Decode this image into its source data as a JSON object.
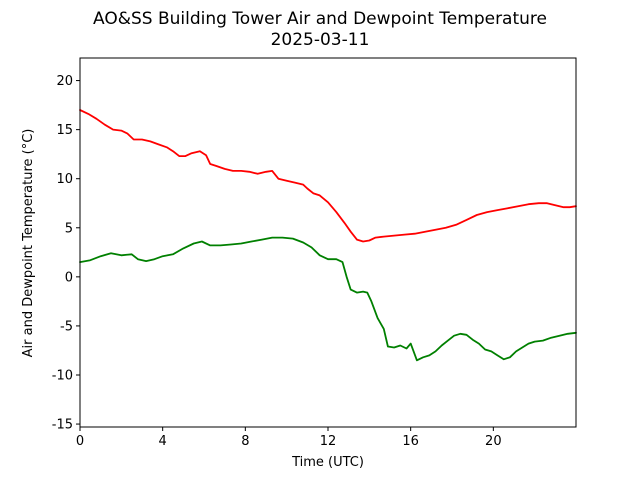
{
  "chart_data": {
    "type": "line",
    "title": "AO&SS Building Tower Air and Dewpoint Temperature",
    "subtitle": "2025-03-11",
    "xlabel": "Time (UTC)",
    "ylabel": "Air and Dewpoint Temperature (°C)",
    "xlim": [
      0,
      24
    ],
    "ylim": [
      -15.3,
      22.3
    ],
    "x_ticks": [
      0,
      4,
      8,
      12,
      16,
      20
    ],
    "y_ticks": [
      -15,
      -10,
      -5,
      0,
      5,
      10,
      15,
      20
    ],
    "grid": false,
    "legend": "none",
    "series": [
      {
        "color": "#ff0000",
        "points": [
          [
            0,
            17.0
          ],
          [
            0.4,
            16.6
          ],
          [
            0.8,
            16.1
          ],
          [
            1.2,
            15.5
          ],
          [
            1.6,
            15.0
          ],
          [
            2.0,
            14.9
          ],
          [
            2.3,
            14.6
          ],
          [
            2.6,
            14.0
          ],
          [
            3.0,
            14.0
          ],
          [
            3.4,
            13.8
          ],
          [
            3.8,
            13.5
          ],
          [
            4.2,
            13.2
          ],
          [
            4.5,
            12.8
          ],
          [
            4.8,
            12.3
          ],
          [
            5.1,
            12.3
          ],
          [
            5.4,
            12.6
          ],
          [
            5.8,
            12.8
          ],
          [
            6.1,
            12.4
          ],
          [
            6.3,
            11.5
          ],
          [
            6.6,
            11.3
          ],
          [
            7.0,
            11.0
          ],
          [
            7.4,
            10.8
          ],
          [
            7.8,
            10.8
          ],
          [
            8.2,
            10.7
          ],
          [
            8.6,
            10.5
          ],
          [
            9.0,
            10.7
          ],
          [
            9.3,
            10.8
          ],
          [
            9.6,
            10.0
          ],
          [
            10.0,
            9.8
          ],
          [
            10.4,
            9.6
          ],
          [
            10.8,
            9.4
          ],
          [
            11.0,
            9.0
          ],
          [
            11.3,
            8.5
          ],
          [
            11.6,
            8.3
          ],
          [
            12.0,
            7.6
          ],
          [
            12.4,
            6.6
          ],
          [
            12.8,
            5.5
          ],
          [
            13.1,
            4.6
          ],
          [
            13.4,
            3.8
          ],
          [
            13.7,
            3.6
          ],
          [
            14.0,
            3.7
          ],
          [
            14.3,
            4.0
          ],
          [
            14.7,
            4.1
          ],
          [
            15.2,
            4.2
          ],
          [
            15.7,
            4.3
          ],
          [
            16.2,
            4.4
          ],
          [
            16.7,
            4.6
          ],
          [
            17.2,
            4.8
          ],
          [
            17.7,
            5.0
          ],
          [
            18.2,
            5.3
          ],
          [
            18.7,
            5.8
          ],
          [
            19.2,
            6.3
          ],
          [
            19.7,
            6.6
          ],
          [
            20.2,
            6.8
          ],
          [
            20.7,
            7.0
          ],
          [
            21.2,
            7.2
          ],
          [
            21.7,
            7.4
          ],
          [
            22.2,
            7.5
          ],
          [
            22.6,
            7.5
          ],
          [
            23.0,
            7.3
          ],
          [
            23.4,
            7.1
          ],
          [
            23.7,
            7.1
          ],
          [
            24.0,
            7.2
          ]
        ]
      },
      {
        "color": "#008000",
        "points": [
          [
            0,
            1.5
          ],
          [
            0.5,
            1.7
          ],
          [
            1.0,
            2.1
          ],
          [
            1.5,
            2.4
          ],
          [
            2.0,
            2.2
          ],
          [
            2.5,
            2.3
          ],
          [
            2.8,
            1.8
          ],
          [
            3.2,
            1.6
          ],
          [
            3.6,
            1.8
          ],
          [
            4.0,
            2.1
          ],
          [
            4.5,
            2.3
          ],
          [
            5.0,
            2.9
          ],
          [
            5.5,
            3.4
          ],
          [
            5.9,
            3.6
          ],
          [
            6.3,
            3.2
          ],
          [
            6.8,
            3.2
          ],
          [
            7.3,
            3.3
          ],
          [
            7.8,
            3.4
          ],
          [
            8.3,
            3.6
          ],
          [
            8.8,
            3.8
          ],
          [
            9.3,
            4.0
          ],
          [
            9.8,
            4.0
          ],
          [
            10.3,
            3.9
          ],
          [
            10.8,
            3.5
          ],
          [
            11.2,
            3.0
          ],
          [
            11.6,
            2.2
          ],
          [
            12.0,
            1.8
          ],
          [
            12.4,
            1.8
          ],
          [
            12.7,
            1.5
          ],
          [
            12.9,
            0.0
          ],
          [
            13.1,
            -1.3
          ],
          [
            13.4,
            -1.6
          ],
          [
            13.7,
            -1.5
          ],
          [
            13.9,
            -1.6
          ],
          [
            14.1,
            -2.5
          ],
          [
            14.4,
            -4.2
          ],
          [
            14.7,
            -5.3
          ],
          [
            14.9,
            -7.1
          ],
          [
            15.2,
            -7.2
          ],
          [
            15.5,
            -7.0
          ],
          [
            15.8,
            -7.3
          ],
          [
            16.0,
            -6.8
          ],
          [
            16.3,
            -8.5
          ],
          [
            16.6,
            -8.2
          ],
          [
            16.9,
            -8.0
          ],
          [
            17.2,
            -7.6
          ],
          [
            17.5,
            -7.0
          ],
          [
            17.8,
            -6.5
          ],
          [
            18.1,
            -6.0
          ],
          [
            18.4,
            -5.8
          ],
          [
            18.7,
            -5.9
          ],
          [
            19.0,
            -6.4
          ],
          [
            19.3,
            -6.8
          ],
          [
            19.6,
            -7.4
          ],
          [
            19.9,
            -7.6
          ],
          [
            20.2,
            -8.0
          ],
          [
            20.5,
            -8.4
          ],
          [
            20.8,
            -8.2
          ],
          [
            21.1,
            -7.6
          ],
          [
            21.4,
            -7.2
          ],
          [
            21.7,
            -6.8
          ],
          [
            22.0,
            -6.6
          ],
          [
            22.4,
            -6.5
          ],
          [
            22.8,
            -6.2
          ],
          [
            23.2,
            -6.0
          ],
          [
            23.6,
            -5.8
          ],
          [
            24.0,
            -5.7
          ]
        ]
      }
    ]
  }
}
